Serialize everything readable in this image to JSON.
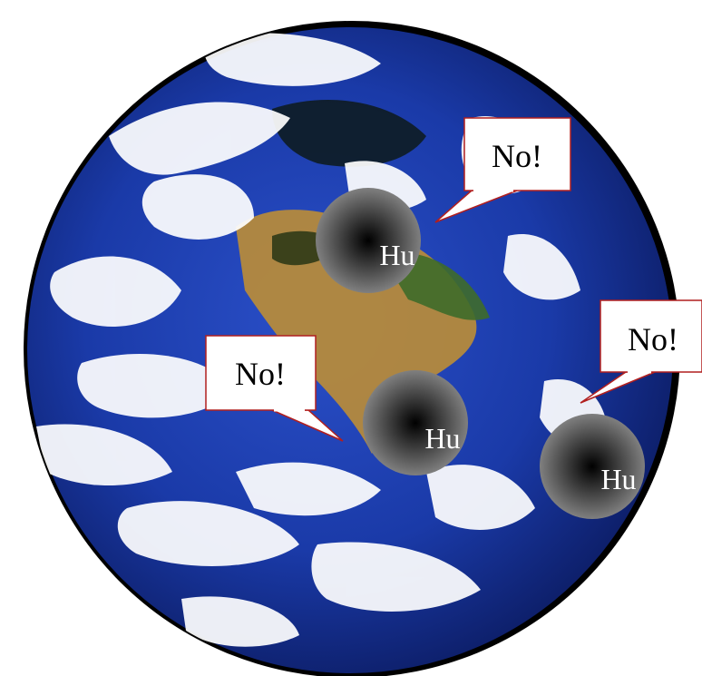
{
  "figure": {
    "globe": {
      "name": "earth-globe",
      "ocean_color": "#1a3aa8",
      "cloud_color": "#ffffff",
      "land_color": "#b58a3c",
      "outline_color": "#000000"
    },
    "spheres": [
      {
        "label": "Hu",
        "gradient_center": "#000000",
        "gradient_edge": "#8c8c8c"
      },
      {
        "label": "Hu",
        "gradient_center": "#000000",
        "gradient_edge": "#8c8c8c"
      },
      {
        "label": "Hu",
        "gradient_center": "#000000",
        "gradient_edge": "#8c8c8c"
      }
    ],
    "callouts": [
      {
        "text": "No!"
      },
      {
        "text": "No!"
      },
      {
        "text": "No!"
      }
    ],
    "callout_fill": "#ffffff",
    "callout_border": "#b11f1f"
  }
}
